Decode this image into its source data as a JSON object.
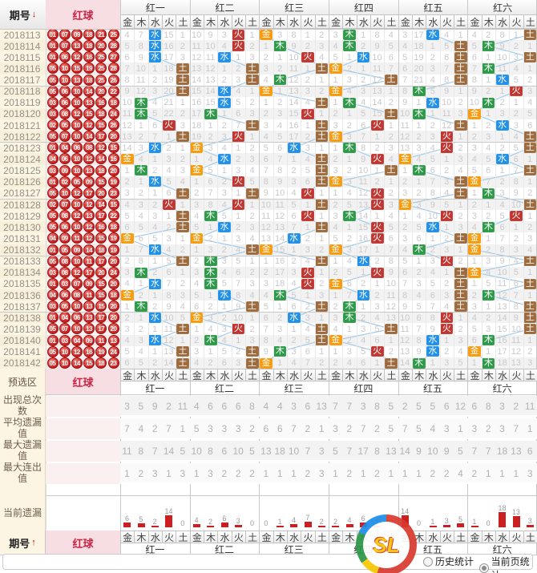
{
  "header": {
    "period_label": "期号",
    "sort_down_icon": "↓",
    "sort_up_icon": "↑",
    "ball_label": "红球",
    "groups": [
      "红一",
      "红二",
      "红三",
      "红四",
      "红五",
      "红六"
    ],
    "elements": [
      "金",
      "木",
      "水",
      "火",
      "土"
    ]
  },
  "colors": {
    "金": "#f89a0a",
    "木": "#2e9948",
    "水": "#2090e8",
    "火": "#c23631",
    "土": "#9d6b3d",
    "line": "#a3cbe9",
    "ball": "#cb2323",
    "bar": "#cc1f1f"
  },
  "periods": [
    "2018113",
    "2018114",
    "2018115",
    "2018116",
    "2018117",
    "2018118",
    "2018119",
    "2018120",
    "2018121",
    "2018122",
    "2018123",
    "2018124",
    "2018125",
    "2018126",
    "2018127",
    "2018128",
    "2018129",
    "2018130",
    "2018131",
    "2018132",
    "2018133",
    "2018134",
    "2018135",
    "2018136",
    "2018137",
    "2018138",
    "2018139",
    "2018140",
    "2018141",
    "2018142"
  ],
  "balls": [
    [
      "01",
      "07",
      "09",
      "18",
      "21",
      "25"
    ],
    [
      "01",
      "07",
      "13",
      "18",
      "20",
      "28"
    ],
    [
      "01",
      "06",
      "12",
      "16",
      "25",
      "27"
    ],
    [
      "05",
      "10",
      "15",
      "19",
      "25",
      "28"
    ],
    [
      "05",
      "10",
      "13",
      "18",
      "25",
      "26"
    ],
    [
      "05",
      "06",
      "10",
      "14",
      "20",
      "22"
    ],
    [
      "03",
      "06",
      "10",
      "13",
      "16",
      "18"
    ],
    [
      "03",
      "08",
      "12",
      "15",
      "18",
      "24"
    ],
    [
      "02",
      "05",
      "10",
      "12",
      "15",
      "26"
    ],
    [
      "05",
      "07",
      "10",
      "14",
      "17",
      "20"
    ],
    [
      "01",
      "04",
      "06",
      "08",
      "12",
      "15"
    ],
    [
      "04",
      "06",
      "10",
      "12",
      "14",
      "16"
    ],
    [
      "03",
      "09",
      "10",
      "13",
      "18",
      "20"
    ],
    [
      "01",
      "02",
      "05",
      "09",
      "15",
      "19"
    ],
    [
      "05",
      "10",
      "12",
      "17",
      "20",
      "23"
    ],
    [
      "02",
      "07",
      "10",
      "12",
      "14",
      "15"
    ],
    [
      "05",
      "08",
      "12",
      "13",
      "17",
      "22"
    ],
    [
      "05",
      "06",
      "10",
      "12",
      "16",
      "18"
    ],
    [
      "04",
      "09",
      "11",
      "12",
      "15",
      "19"
    ],
    [
      "01",
      "05",
      "09",
      "14",
      "18",
      "19"
    ],
    [
      "05",
      "08",
      "10",
      "11",
      "17",
      "20"
    ],
    [
      "03",
      "08",
      "12",
      "17",
      "20",
      "24"
    ],
    [
      "01",
      "03",
      "07",
      "09",
      "15",
      "20"
    ],
    [
      "04",
      "06",
      "08",
      "11",
      "15",
      "18"
    ],
    [
      "03",
      "05",
      "10",
      "13",
      "15",
      "20"
    ],
    [
      "01",
      "04",
      "06",
      "13",
      "17",
      "20"
    ],
    [
      "05",
      "07",
      "10",
      "13",
      "17",
      "20"
    ],
    [
      "01",
      "03",
      "04",
      "09",
      "11",
      "13"
    ],
    [
      "05",
      "10",
      "12",
      "16",
      "19",
      "24"
    ],
    [
      "05",
      "10",
      "14",
      "15",
      "18",
      "23"
    ]
  ],
  "grid": {
    "init": [
      [
        3,
        6,
        0,
        14,
        0
      ],
      [
        9,
        8,
        2,
        0,
        0
      ],
      [
        0,
        2,
        7,
        0,
        1
      ],
      [
        2,
        0,
        0,
        7,
        3
      ],
      [
        2,
        16,
        0,
        3,
        0
      ],
      [
        3,
        1,
        7,
        0,
        0
      ]
    ],
    "blocks": [
      [
        "水",
        "水",
        "水",
        "土",
        "土",
        "土",
        "木",
        "木",
        "火",
        "土",
        "水",
        "金",
        "木",
        "水",
        "土",
        "火",
        "土",
        "土",
        "金",
        "水",
        "土",
        "木",
        "水",
        "金",
        "木",
        "水",
        "土",
        "水",
        "土",
        "土"
      ],
      [
        "火",
        "火",
        "水",
        "土",
        "土",
        "水",
        "水",
        "木",
        "土",
        "火",
        "金",
        "水",
        "金",
        "火",
        "土",
        "火",
        "木",
        "水",
        "金",
        "土",
        "木",
        "木",
        "木",
        "水",
        "土",
        "金",
        "火",
        "木",
        "土",
        "土"
      ],
      [
        "金",
        "木",
        "火",
        "土",
        "木",
        "金",
        "土",
        "火",
        "土",
        "土",
        "水",
        "土",
        "土",
        "土",
        "火",
        "土",
        "火",
        "土",
        "水",
        "金",
        "土",
        "火",
        "火",
        "木",
        "土",
        "水",
        "土",
        "土",
        "木",
        "金"
      ],
      [
        "木",
        "木",
        "水",
        "金",
        "土",
        "金",
        "木",
        "土",
        "火",
        "金",
        "木",
        "火",
        "土",
        "金",
        "火",
        "火",
        "木",
        "火",
        "火",
        "金",
        "水",
        "火",
        "金",
        "水",
        "木",
        "木",
        "土",
        "金",
        "火",
        "土"
      ],
      [
        "水",
        "土",
        "土",
        "土",
        "土",
        "木",
        "水",
        "木",
        "土",
        "火",
        "火",
        "金",
        "木",
        "土",
        "土",
        "金",
        "火",
        "水",
        "土",
        "木",
        "火",
        "土",
        "土",
        "土",
        "土",
        "火",
        "火",
        "水",
        "水",
        "木"
      ],
      [
        "土",
        "木",
        "土",
        "木",
        "水",
        "火",
        "木",
        "金",
        "水",
        "土",
        "土",
        "水",
        "土",
        "金",
        "木",
        "土",
        "火",
        "木",
        "金",
        "金",
        "土",
        "金",
        "土",
        "木",
        "土",
        "土",
        "土",
        "木",
        "金",
        "木"
      ]
    ]
  },
  "presel": {
    "label": "预选区",
    "ball_label": "红球"
  },
  "stats": [
    {
      "label": "出现总次数",
      "values": [
        [
          3,
          5,
          9,
          2,
          11
        ],
        [
          4,
          6,
          6,
          6,
          8
        ],
        [
          4,
          4,
          3,
          6,
          13
        ],
        [
          7,
          7,
          3,
          8,
          5
        ],
        [
          2,
          5,
          5,
          6,
          12
        ],
        [
          6,
          8,
          3,
          2,
          11
        ]
      ]
    },
    {
      "label": "平均遗漏值",
      "values": [
        [
          7,
          4,
          2,
          7,
          1
        ],
        [
          5,
          3,
          3,
          3,
          2
        ],
        [
          6,
          6,
          7,
          2,
          1
        ],
        [
          3,
          2,
          7,
          2,
          5
        ],
        [
          7,
          5,
          4,
          3,
          1
        ],
        [
          3,
          2,
          3,
          7,
          1
        ]
      ]
    },
    {
      "label": "最大遗漏值",
      "values": [
        [
          11,
          8,
          7,
          14,
          5
        ],
        [
          10,
          8,
          6,
          10,
          5
        ],
        [
          13,
          18,
          10,
          7,
          3
        ],
        [
          5,
          7,
          17,
          8,
          13
        ],
        [
          14,
          9,
          10,
          9,
          5
        ],
        [
          7,
          7,
          18,
          13,
          6
        ]
      ]
    },
    {
      "label": "最大连出值",
      "values": [
        [
          1,
          2,
          3,
          1,
          3
        ],
        [
          1,
          3,
          2,
          2,
          2
        ],
        [
          1,
          1,
          1,
          2,
          3
        ],
        [
          1,
          2,
          1,
          2,
          1
        ],
        [
          1,
          1,
          2,
          2,
          4
        ],
        [
          2,
          1,
          1,
          1,
          3
        ]
      ]
    }
  ],
  "current_miss": {
    "label": "当前遗漏",
    "values": [
      [
        6,
        5,
        2,
        14,
        0
      ],
      [
        4,
        2,
        6,
        3,
        0
      ],
      [
        0,
        1,
        4,
        7,
        2
      ],
      [
        2,
        4,
        6,
        1,
        0
      ],
      [
        14,
        0,
        1,
        3,
        5
      ],
      [
        1,
        0,
        18,
        13,
        3
      ]
    ]
  },
  "footer": {
    "period_label": "期号",
    "ball_label": "红球",
    "radio_history": "历史统计",
    "radio_current": "当前页统计",
    "logo_text": "SL"
  }
}
